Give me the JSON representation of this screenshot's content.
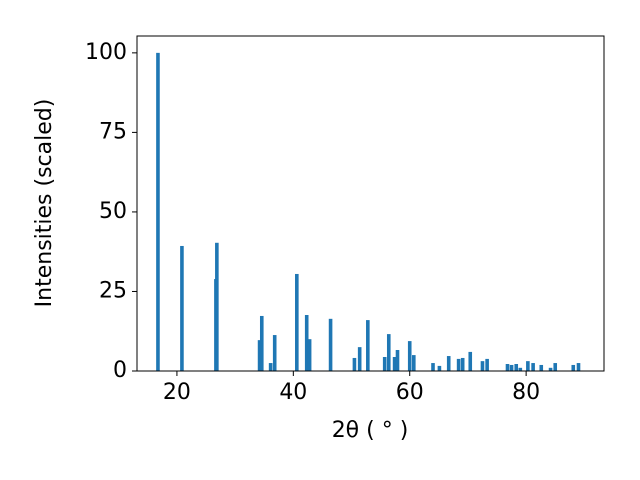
{
  "chart_data": {
    "type": "bar",
    "x_label": "2θ ( ° )",
    "y_label": "Intensities (scaled)",
    "color": "#1f77b4",
    "x": [
      16.74,
      20.86,
      26.7,
      26.86,
      34.2,
      34.58,
      36.1,
      36.8,
      40.6,
      42.3,
      42.8,
      46.4,
      50.5,
      51.4,
      52.8,
      55.7,
      56.4,
      57.4,
      57.9,
      60.0,
      60.7,
      64.0,
      65.1,
      66.7,
      68.4,
      69.1,
      70.4,
      72.5,
      73.3,
      76.8,
      77.5,
      78.3,
      79.0,
      80.3,
      81.2,
      82.6,
      84.2,
      85.0,
      88.1,
      89.0
    ],
    "values": [
      100,
      39.3,
      28.9,
      40.3,
      9.7,
      17.3,
      2.5,
      11.3,
      30.5,
      17.6,
      10,
      16.4,
      4.1,
      7.5,
      16,
      4.4,
      11.6,
      4.4,
      6.6,
      9.4,
      5,
      2.5,
      1.6,
      4.7,
      3.8,
      4.1,
      6,
      3.1,
      3.8,
      2.2,
      1.9,
      2.2,
      1,
      3.1,
      2.5,
      1.9,
      1,
      2.5,
      1.9,
      2.5
    ],
    "xlim": [
      13.14,
      93.38
    ],
    "xticks": [
      20,
      40,
      60,
      80
    ],
    "ylim": [
      0,
      105.3
    ],
    "yticks": [
      0,
      25,
      50,
      75,
      100
    ]
  }
}
